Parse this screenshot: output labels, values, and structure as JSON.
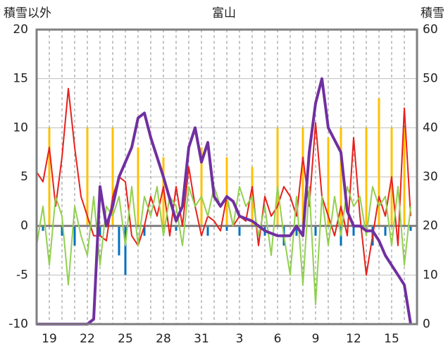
{
  "chart_data": {
    "type": "line",
    "title": "富山",
    "left_axis_label": "積雪以外",
    "right_axis_label": "積雪",
    "left_ylim": [
      -10,
      20
    ],
    "right_ylim": [
      0,
      60
    ],
    "left_ticks": [
      20,
      15,
      10,
      5,
      0,
      -5,
      -10
    ],
    "right_ticks": [
      60,
      50,
      40,
      30,
      20,
      10,
      0
    ],
    "x_tick_labels": [
      "19",
      "22",
      "25",
      "28",
      "31",
      "3",
      "6",
      "9",
      "12",
      "15"
    ],
    "grid": "dashed-vertical-daily",
    "colors": {
      "temperature": "#e8201b",
      "green_series": "#92d050",
      "orange_bars": "#ffc000",
      "blue_bars": "#0070c0",
      "snow_depth": "#7030a0",
      "zero_line": "#7f7f7f",
      "frame": "#7f7f7f"
    },
    "series": [
      {
        "key": "temperature",
        "axis": "left",
        "x": [
          0,
          0.5,
          1,
          1.5,
          2,
          2.5,
          3,
          3.5,
          4,
          4.5,
          5,
          5.5,
          6,
          6.5,
          7,
          7.5,
          8,
          8.5,
          9,
          9.5,
          10,
          10.5,
          11,
          11.5,
          12,
          12.5,
          13,
          13.5,
          14,
          14.5,
          15,
          15.5,
          16,
          16.5,
          17,
          17.5,
          18,
          18.5,
          19,
          19.5,
          20,
          20.5,
          21,
          21.5,
          22,
          22.5,
          23,
          23.5,
          24,
          24.5,
          25,
          25.5,
          26,
          26.5,
          27,
          27.5,
          28,
          28.5,
          29,
          29.5
        ],
        "values": [
          5.5,
          4.5,
          8,
          2,
          7,
          14,
          8,
          3,
          1,
          -1,
          -1,
          -1.5,
          3,
          5,
          4.5,
          -1,
          -2,
          0,
          3,
          1,
          4,
          -1,
          4,
          0,
          6,
          2,
          -1,
          1,
          0.5,
          -0.5,
          3,
          0,
          1,
          0.5,
          4,
          -2,
          3,
          1,
          2,
          4,
          3,
          1,
          7,
          2,
          10.5,
          3,
          1,
          -1,
          2,
          -1,
          9,
          1,
          -5,
          -1,
          3,
          1,
          5,
          -2,
          12,
          1
        ]
      },
      {
        "key": "green_series",
        "axis": "left",
        "x": [
          0,
          0.5,
          1,
          1.5,
          2,
          2.5,
          3,
          3.5,
          4,
          4.5,
          5,
          5.5,
          6,
          6.5,
          7,
          7.5,
          8,
          8.5,
          9,
          9.5,
          10,
          10.5,
          11,
          11.5,
          12,
          12.5,
          13,
          13.5,
          14,
          14.5,
          15,
          15.5,
          16,
          16.5,
          17,
          17.5,
          18,
          18.5,
          19,
          19.5,
          20,
          20.5,
          21,
          21.5,
          22,
          22.5,
          23,
          23.5,
          24,
          24.5,
          25,
          25.5,
          26,
          26.5,
          27,
          27.5,
          28,
          28.5,
          29,
          29.5
        ],
        "values": [
          -2,
          2,
          -4,
          3,
          1,
          -6,
          2,
          -1,
          -3,
          3,
          -4,
          2,
          1,
          3,
          -2,
          4,
          -2,
          3,
          1,
          4,
          -1,
          3,
          2,
          -2,
          4,
          2,
          3,
          1,
          4,
          2,
          3,
          0,
          4,
          2,
          3,
          -1,
          2,
          -3,
          4,
          -1,
          -5,
          3,
          -6,
          4,
          -8,
          3,
          -2,
          3,
          -1,
          4,
          2,
          3,
          -1,
          4,
          2,
          3,
          -2,
          4,
          -4,
          2
        ]
      },
      {
        "key": "snow_depth",
        "axis": "right",
        "x": [
          0,
          1,
          2,
          3,
          3.5,
          4,
          4.5,
          5,
          5.5,
          6,
          6.5,
          7,
          7.5,
          8,
          8.5,
          9,
          10,
          11,
          11.5,
          12,
          12.5,
          13,
          13.5,
          14,
          14.5,
          15,
          15.5,
          16,
          17,
          18,
          19,
          20,
          20.5,
          21,
          21.5,
          22,
          22.5,
          23,
          24,
          24.5,
          25,
          25.5,
          26,
          26.5,
          27,
          27.5,
          28,
          28.5,
          29,
          29.5
        ],
        "values": [
          0,
          0,
          0,
          0,
          0,
          0,
          1,
          28,
          20,
          24,
          30,
          33,
          36,
          42,
          43,
          38,
          30,
          21,
          24,
          36,
          40,
          33,
          37,
          26,
          24,
          26,
          25,
          22,
          21,
          19,
          18,
          18,
          20,
          18,
          35,
          45,
          50,
          40,
          35,
          23,
          20,
          20,
          19,
          19,
          17,
          14,
          12,
          10,
          8,
          0
        ]
      }
    ],
    "bars": [
      {
        "key": "orange_bars",
        "axis": "left",
        "x": [
          1,
          4,
          6,
          8,
          10,
          13,
          15,
          17,
          19,
          21,
          23,
          24,
          26,
          27,
          28,
          29
        ],
        "values": [
          10,
          10,
          10,
          8,
          7,
          8,
          7,
          6,
          10,
          10,
          9,
          10,
          10,
          13,
          10,
          10
        ]
      },
      {
        "key": "blue_bars",
        "axis": "left",
        "x": [
          0.5,
          2,
          3,
          5,
          6.5,
          7,
          8.5,
          11,
          13.5,
          15,
          16,
          18,
          19.5,
          20.5,
          22,
          24,
          25,
          26.5,
          27.5,
          29.5
        ],
        "values": [
          -0.5,
          -1,
          -2,
          -1,
          -3,
          -5,
          -1,
          -0.5,
          -1,
          -0.5,
          -1,
          -1,
          -2,
          -1,
          -1,
          -2,
          -1,
          -2,
          -1,
          -0.5
        ]
      }
    ]
  }
}
